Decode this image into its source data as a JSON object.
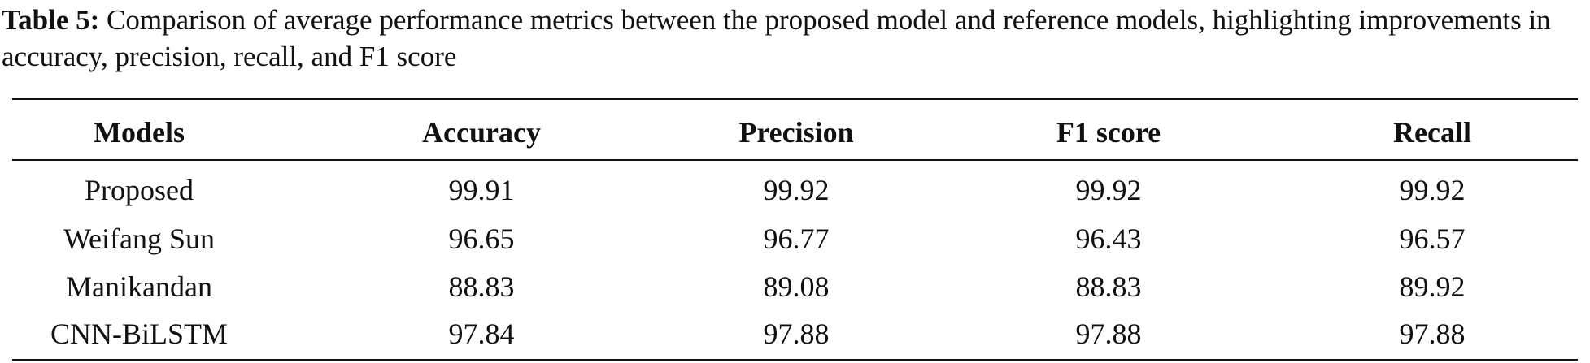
{
  "caption": {
    "label": "Table 5:",
    "text": "Comparison of average performance metrics between the proposed model and reference models, highlighting improvements in accuracy, precision, recall, and F1 score"
  },
  "table": {
    "header": [
      "Models",
      "Accuracy",
      "Precision",
      "F1 score",
      "Recall"
    ],
    "rows": [
      [
        "Proposed",
        99.91,
        99.92,
        99.92,
        99.92
      ],
      [
        "Weifang Sun",
        96.65,
        96.77,
        96.43,
        96.57
      ],
      [
        "Manikandan",
        88.83,
        89.08,
        88.83,
        89.92
      ],
      [
        "CNN-BiLSTM",
        97.84,
        97.88,
        97.88,
        97.88
      ]
    ]
  }
}
